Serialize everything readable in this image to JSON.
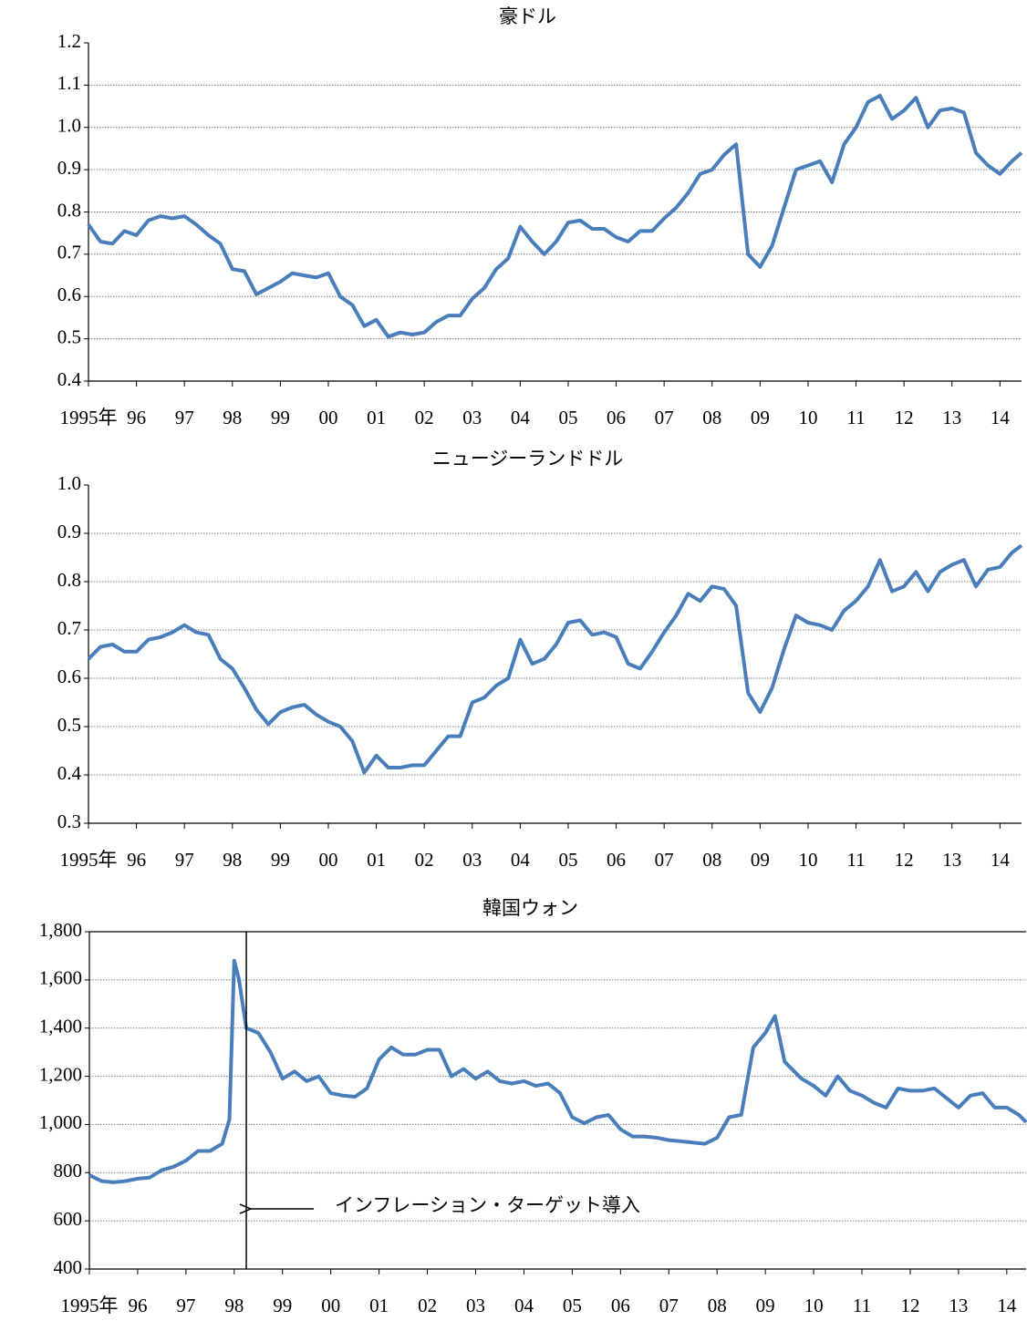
{
  "chart_data": [
    {
      "type": "line",
      "title": "豪ドル",
      "xlim": [
        1995,
        2014.45
      ],
      "ylim": [
        0.4,
        1.2
      ],
      "yticks": [
        0.4,
        0.5,
        0.6,
        0.7,
        0.8,
        0.9,
        {
          "value": 1,
          "label": "1.0"
        },
        1.1,
        1.2
      ],
      "xticks": [
        {
          "value": 1995,
          "label": "1995年"
        },
        {
          "value": 1996,
          "label": "96"
        },
        {
          "value": 1997,
          "label": "97"
        },
        {
          "value": 1998,
          "label": "98"
        },
        {
          "value": 1999,
          "label": "99"
        },
        {
          "value": 2000,
          "label": "00"
        },
        {
          "value": 2001,
          "label": "01"
        },
        {
          "value": 2002,
          "label": "02"
        },
        {
          "value": 2003,
          "label": "03"
        },
        {
          "value": 2004,
          "label": "04"
        },
        {
          "value": 2005,
          "label": "05"
        },
        {
          "value": 2006,
          "label": "06"
        },
        {
          "value": 2007,
          "label": "07"
        },
        {
          "value": 2008,
          "label": "08"
        },
        {
          "value": 2009,
          "label": "09"
        },
        {
          "value": 2010,
          "label": "10"
        },
        {
          "value": 2011,
          "label": "11"
        },
        {
          "value": 2012,
          "label": "12"
        },
        {
          "value": 2013,
          "label": "13"
        },
        {
          "value": 2014,
          "label": "14"
        }
      ],
      "grid": true,
      "frame": false,
      "x": [
        1995.0,
        1995.25,
        1995.5,
        1995.75,
        1996.0,
        1996.25,
        1996.5,
        1996.75,
        1997.0,
        1997.25,
        1997.5,
        1997.75,
        1998.0,
        1998.25,
        1998.5,
        1998.75,
        1999.0,
        1999.25,
        1999.5,
        1999.75,
        2000.0,
        2000.25,
        2000.5,
        2000.75,
        2001.0,
        2001.25,
        2001.5,
        2001.75,
        2002.0,
        2002.25,
        2002.5,
        2002.75,
        2003.0,
        2003.25,
        2003.5,
        2003.75,
        2004.0,
        2004.25,
        2004.5,
        2004.75,
        2005.0,
        2005.25,
        2005.5,
        2005.75,
        2006.0,
        2006.25,
        2006.5,
        2006.75,
        2007.0,
        2007.25,
        2007.5,
        2007.75,
        2008.0,
        2008.25,
        2008.5,
        2008.75,
        2009.0,
        2009.25,
        2009.5,
        2009.75,
        2010.0,
        2010.25,
        2010.5,
        2010.75,
        2011.0,
        2011.25,
        2011.5,
        2011.75,
        2012.0,
        2012.25,
        2012.5,
        2012.75,
        2013.0,
        2013.25,
        2013.5,
        2013.75,
        2014.0,
        2014.25,
        2014.45
      ],
      "series": [
        {
          "color": "#4a7ebb",
          "values": [
            0.77,
            0.73,
            0.725,
            0.755,
            0.745,
            0.78,
            0.79,
            0.785,
            0.79,
            0.77,
            0.745,
            0.725,
            0.665,
            0.66,
            0.605,
            0.62,
            0.635,
            0.655,
            0.65,
            0.645,
            0.655,
            0.6,
            0.58,
            0.53,
            0.545,
            0.505,
            0.515,
            0.51,
            0.515,
            0.54,
            0.555,
            0.555,
            0.595,
            0.62,
            0.665,
            0.69,
            0.765,
            0.73,
            0.7,
            0.73,
            0.775,
            0.78,
            0.76,
            0.76,
            0.74,
            0.73,
            0.755,
            0.755,
            0.785,
            0.81,
            0.845,
            0.89,
            0.9,
            0.935,
            0.96,
            0.7,
            0.67,
            0.72,
            0.81,
            0.9,
            0.91,
            0.92,
            0.87,
            0.96,
            1.0,
            1.06,
            1.075,
            1.02,
            1.04,
            1.07,
            1.0,
            1.04,
            1.045,
            1.035,
            0.94,
            0.91,
            0.89,
            0.92,
            0.94
          ]
        }
      ]
    },
    {
      "type": "line",
      "title": "ニュージーランドドル",
      "xlim": [
        1995,
        2014.45
      ],
      "ylim": [
        0.3,
        1
      ],
      "yticks": [
        0.3,
        0.4,
        0.5,
        0.6,
        0.7,
        0.8,
        0.9,
        {
          "value": 1,
          "label": "1.0"
        }
      ],
      "xticks": [
        {
          "value": 1995,
          "label": "1995年"
        },
        {
          "value": 1996,
          "label": "96"
        },
        {
          "value": 1997,
          "label": "97"
        },
        {
          "value": 1998,
          "label": "98"
        },
        {
          "value": 1999,
          "label": "99"
        },
        {
          "value": 2000,
          "label": "00"
        },
        {
          "value": 2001,
          "label": "01"
        },
        {
          "value": 2002,
          "label": "02"
        },
        {
          "value": 2003,
          "label": "03"
        },
        {
          "value": 2004,
          "label": "04"
        },
        {
          "value": 2005,
          "label": "05"
        },
        {
          "value": 2006,
          "label": "06"
        },
        {
          "value": 2007,
          "label": "07"
        },
        {
          "value": 2008,
          "label": "08"
        },
        {
          "value": 2009,
          "label": "09"
        },
        {
          "value": 2010,
          "label": "10"
        },
        {
          "value": 2011,
          "label": "11"
        },
        {
          "value": 2012,
          "label": "12"
        },
        {
          "value": 2013,
          "label": "13"
        },
        {
          "value": 2014,
          "label": "14"
        }
      ],
      "grid": true,
      "frame": false,
      "x": [
        1995.0,
        1995.25,
        1995.5,
        1995.75,
        1996.0,
        1996.25,
        1996.5,
        1996.75,
        1997.0,
        1997.25,
        1997.5,
        1997.75,
        1998.0,
        1998.25,
        1998.5,
        1998.75,
        1999.0,
        1999.25,
        1999.5,
        1999.75,
        2000.0,
        2000.25,
        2000.5,
        2000.75,
        2001.0,
        2001.25,
        2001.5,
        2001.75,
        2002.0,
        2002.25,
        2002.5,
        2002.75,
        2003.0,
        2003.25,
        2003.5,
        2003.75,
        2004.0,
        2004.25,
        2004.5,
        2004.75,
        2005.0,
        2005.25,
        2005.5,
        2005.75,
        2006.0,
        2006.25,
        2006.5,
        2006.75,
        2007.0,
        2007.25,
        2007.5,
        2007.75,
        2008.0,
        2008.25,
        2008.5,
        2008.75,
        2009.0,
        2009.25,
        2009.5,
        2009.75,
        2010.0,
        2010.25,
        2010.5,
        2010.75,
        2011.0,
        2011.25,
        2011.5,
        2011.75,
        2012.0,
        2012.25,
        2012.5,
        2012.75,
        2013.0,
        2013.25,
        2013.5,
        2013.75,
        2014.0,
        2014.25,
        2014.45
      ],
      "series": [
        {
          "color": "#4a7ebb",
          "values": [
            0.64,
            0.665,
            0.67,
            0.655,
            0.655,
            0.68,
            0.685,
            0.695,
            0.71,
            0.695,
            0.69,
            0.64,
            0.62,
            0.58,
            0.535,
            0.505,
            0.53,
            0.54,
            0.545,
            0.525,
            0.51,
            0.5,
            0.47,
            0.405,
            0.44,
            0.415,
            0.415,
            0.42,
            0.42,
            0.45,
            0.48,
            0.48,
            0.55,
            0.56,
            0.585,
            0.6,
            0.68,
            0.63,
            0.64,
            0.67,
            0.715,
            0.72,
            0.69,
            0.695,
            0.685,
            0.63,
            0.62,
            0.655,
            0.695,
            0.73,
            0.775,
            0.76,
            0.79,
            0.785,
            0.75,
            0.57,
            0.53,
            0.58,
            0.66,
            0.73,
            0.715,
            0.71,
            0.7,
            0.74,
            0.76,
            0.79,
            0.845,
            0.78,
            0.79,
            0.82,
            0.78,
            0.82,
            0.835,
            0.845,
            0.79,
            0.825,
            0.83,
            0.86,
            0.875
          ]
        }
      ]
    },
    {
      "type": "line",
      "title": "韓国ウォン",
      "xlim": [
        1995,
        2014.4
      ],
      "ylim": [
        400,
        1800
      ],
      "yticks": [
        400,
        600,
        800,
        {
          "value": 1000,
          "label": "1,000"
        },
        {
          "value": 1200,
          "label": "1,200"
        },
        {
          "value": 1400,
          "label": "1,400"
        },
        {
          "value": 1600,
          "label": "1,600"
        },
        {
          "value": 1800,
          "label": "1,800"
        }
      ],
      "xticks": [
        {
          "value": 1995,
          "label": "1995年"
        },
        {
          "value": 1996,
          "label": "96"
        },
        {
          "value": 1997,
          "label": "97"
        },
        {
          "value": 1998,
          "label": "98"
        },
        {
          "value": 1999,
          "label": "99"
        },
        {
          "value": 2000,
          "label": "00"
        },
        {
          "value": 2001,
          "label": "01"
        },
        {
          "value": 2002,
          "label": "02"
        },
        {
          "value": 2003,
          "label": "03"
        },
        {
          "value": 2004,
          "label": "04"
        },
        {
          "value": 2005,
          "label": "05"
        },
        {
          "value": 2006,
          "label": "06"
        },
        {
          "value": 2007,
          "label": "07"
        },
        {
          "value": 2008,
          "label": "08"
        },
        {
          "value": 2009,
          "label": "09"
        },
        {
          "value": 2010,
          "label": "10"
        },
        {
          "value": 2011,
          "label": "11"
        },
        {
          "value": 2012,
          "label": "12"
        },
        {
          "value": 2013,
          "label": "13"
        },
        {
          "value": 2014,
          "label": "14"
        }
      ],
      "grid": true,
      "frame": true,
      "annotation": {
        "text": "インフレーション・ターゲット導入",
        "x": 1998.25
      },
      "x": [
        1995.0,
        1995.25,
        1995.5,
        1995.75,
        1996.0,
        1996.25,
        1996.5,
        1996.75,
        1997.0,
        1997.25,
        1997.5,
        1997.75,
        1997.9,
        1998.0,
        1998.1,
        1998.25,
        1998.5,
        1998.75,
        1999.0,
        1999.25,
        1999.5,
        1999.75,
        2000.0,
        2000.25,
        2000.5,
        2000.75,
        2001.0,
        2001.25,
        2001.5,
        2001.75,
        2002.0,
        2002.25,
        2002.5,
        2002.75,
        2003.0,
        2003.25,
        2003.5,
        2003.75,
        2004.0,
        2004.25,
        2004.5,
        2004.75,
        2005.0,
        2005.25,
        2005.5,
        2005.75,
        2006.0,
        2006.25,
        2006.5,
        2006.75,
        2007.0,
        2007.25,
        2007.5,
        2007.75,
        2008.0,
        2008.25,
        2008.5,
        2008.75,
        2009.0,
        2009.2,
        2009.4,
        2009.75,
        2010.0,
        2010.25,
        2010.5,
        2010.75,
        2011.0,
        2011.25,
        2011.5,
        2011.75,
        2012.0,
        2012.25,
        2012.5,
        2012.75,
        2013.0,
        2013.25,
        2013.5,
        2013.75,
        2014.0,
        2014.25,
        2014.4
      ],
      "series": [
        {
          "color": "#4a7ebb",
          "values": [
            790,
            765,
            760,
            765,
            775,
            780,
            810,
            825,
            850,
            890,
            890,
            920,
            1020,
            1680,
            1600,
            1400,
            1380,
            1300,
            1190,
            1220,
            1180,
            1200,
            1130,
            1120,
            1115,
            1150,
            1270,
            1320,
            1290,
            1290,
            1310,
            1310,
            1200,
            1230,
            1190,
            1220,
            1180,
            1170,
            1180,
            1160,
            1170,
            1130,
            1030,
            1005,
            1030,
            1040,
            980,
            950,
            950,
            945,
            935,
            930,
            925,
            920,
            945,
            1030,
            1040,
            1320,
            1380,
            1450,
            1260,
            1190,
            1160,
            1120,
            1200,
            1140,
            1120,
            1090,
            1070,
            1150,
            1140,
            1140,
            1150,
            1110,
            1070,
            1120,
            1130,
            1070,
            1070,
            1040,
            1010
          ]
        }
      ]
    }
  ]
}
